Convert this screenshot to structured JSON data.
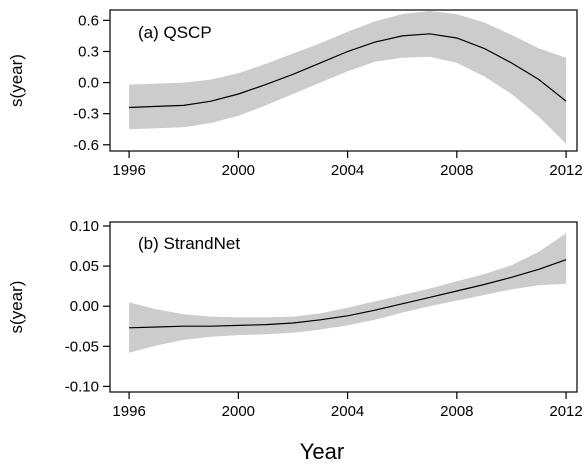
{
  "figure": {
    "xlabel": "Year"
  },
  "chart_data": [
    {
      "type": "line",
      "title": "(a) QSCP",
      "ylabel": "s(year)",
      "xlabel": "",
      "xlim": [
        1995.3,
        2012.4
      ],
      "ylim": [
        -0.66,
        0.7
      ],
      "xticks": [
        1996,
        2000,
        2004,
        2008,
        2012
      ],
      "xtick_labels": [
        "1996",
        "2000",
        "2004",
        "2008",
        "2012"
      ],
      "yticks": [
        -0.6,
        -0.3,
        0.0,
        0.3,
        0.6
      ],
      "ytick_labels": [
        "-0.6",
        "-0.3",
        "0.0",
        "0.3",
        "0.6"
      ],
      "grid": false,
      "band_color": "#cccccc",
      "line_color": "#000000",
      "x": [
        1996,
        1997,
        1998,
        1999,
        2000,
        2001,
        2002,
        2003,
        2004,
        2005,
        2006,
        2007,
        2008,
        2009,
        2010,
        2011,
        2012
      ],
      "series": [
        {
          "role": "fit",
          "values": [
            -0.24,
            -0.23,
            -0.22,
            -0.18,
            -0.11,
            -0.02,
            0.08,
            0.19,
            0.3,
            0.39,
            0.45,
            0.47,
            0.43,
            0.33,
            0.19,
            0.03,
            -0.18
          ]
        },
        {
          "role": "upper",
          "values": [
            -0.02,
            -0.01,
            0.0,
            0.03,
            0.09,
            0.18,
            0.28,
            0.38,
            0.49,
            0.59,
            0.66,
            0.69,
            0.66,
            0.58,
            0.46,
            0.33,
            0.24
          ]
        },
        {
          "role": "lower",
          "values": [
            -0.45,
            -0.44,
            -0.43,
            -0.39,
            -0.32,
            -0.22,
            -0.11,
            0.0,
            0.11,
            0.2,
            0.24,
            0.25,
            0.19,
            0.06,
            -0.11,
            -0.33,
            -0.59
          ]
        }
      ]
    },
    {
      "type": "line",
      "title": "(b) StrandNet",
      "ylabel": "s(year)",
      "xlabel": "",
      "xlim": [
        1995.3,
        2012.4
      ],
      "ylim": [
        -0.107,
        0.105
      ],
      "xticks": [
        1996,
        2000,
        2004,
        2008,
        2012
      ],
      "xtick_labels": [
        "1996",
        "2000",
        "2004",
        "2008",
        "2012"
      ],
      "yticks": [
        -0.1,
        -0.05,
        0.0,
        0.05,
        0.1
      ],
      "ytick_labels": [
        "-0.10",
        "-0.05",
        "0.00",
        "0.05",
        "0.10"
      ],
      "grid": false,
      "band_color": "#cccccc",
      "line_color": "#000000",
      "x": [
        1996,
        1997,
        1998,
        1999,
        2000,
        2001,
        2002,
        2003,
        2004,
        2005,
        2006,
        2007,
        2008,
        2009,
        2010,
        2011,
        2012
      ],
      "series": [
        {
          "role": "fit",
          "values": [
            -0.027,
            -0.026,
            -0.025,
            -0.025,
            -0.024,
            -0.023,
            -0.021,
            -0.017,
            -0.012,
            -0.005,
            0.003,
            0.011,
            0.019,
            0.027,
            0.036,
            0.046,
            0.058
          ]
        },
        {
          "role": "upper",
          "values": [
            0.005,
            -0.004,
            -0.01,
            -0.013,
            -0.014,
            -0.014,
            -0.013,
            -0.009,
            -0.002,
            0.006,
            0.014,
            0.022,
            0.031,
            0.04,
            0.051,
            0.068,
            0.091
          ]
        },
        {
          "role": "lower",
          "values": [
            -0.058,
            -0.049,
            -0.042,
            -0.038,
            -0.036,
            -0.035,
            -0.033,
            -0.029,
            -0.024,
            -0.017,
            -0.008,
            0.0,
            0.007,
            0.014,
            0.021,
            0.026,
            0.028
          ]
        }
      ]
    }
  ]
}
